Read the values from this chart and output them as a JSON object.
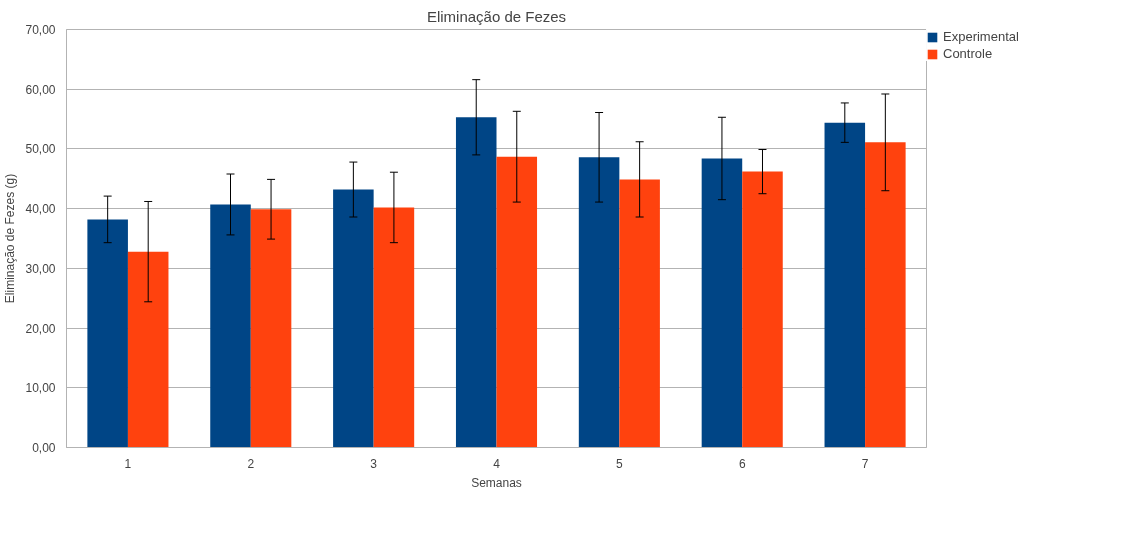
{
  "chart_data": {
    "type": "bar",
    "title": "Eliminação de Fezes",
    "xlabel": "Semanas",
    "ylabel": "Eliminação de Fezes (g)",
    "categories": [
      "1",
      "2",
      "3",
      "4",
      "5",
      "6",
      "7"
    ],
    "series": [
      {
        "name": "Experimental",
        "color": "#004586",
        "values": [
          38.2,
          40.7,
          43.2,
          55.3,
          48.6,
          48.4,
          54.4
        ],
        "errors": [
          3.9,
          5.1,
          4.6,
          6.3,
          7.5,
          6.9,
          3.3
        ]
      },
      {
        "name": "Controle",
        "color": "#ff420e",
        "values": [
          32.8,
          39.9,
          40.2,
          48.7,
          44.9,
          46.2,
          51.1
        ],
        "errors": [
          8.4,
          5.0,
          5.9,
          7.6,
          6.3,
          3.7,
          8.1
        ]
      }
    ],
    "ylim": [
      0,
      70
    ],
    "yticks": [
      {
        "value": 0,
        "label": "0,00"
      },
      {
        "value": 10,
        "label": "10,00"
      },
      {
        "value": 20,
        "label": "20,00"
      },
      {
        "value": 30,
        "label": "30,00"
      },
      {
        "value": 40,
        "label": "40,00"
      },
      {
        "value": 50,
        "label": "50,00"
      },
      {
        "value": 60,
        "label": "60,00"
      },
      {
        "value": 70,
        "label": "70,00"
      }
    ],
    "grid": "y",
    "legend": "right"
  }
}
